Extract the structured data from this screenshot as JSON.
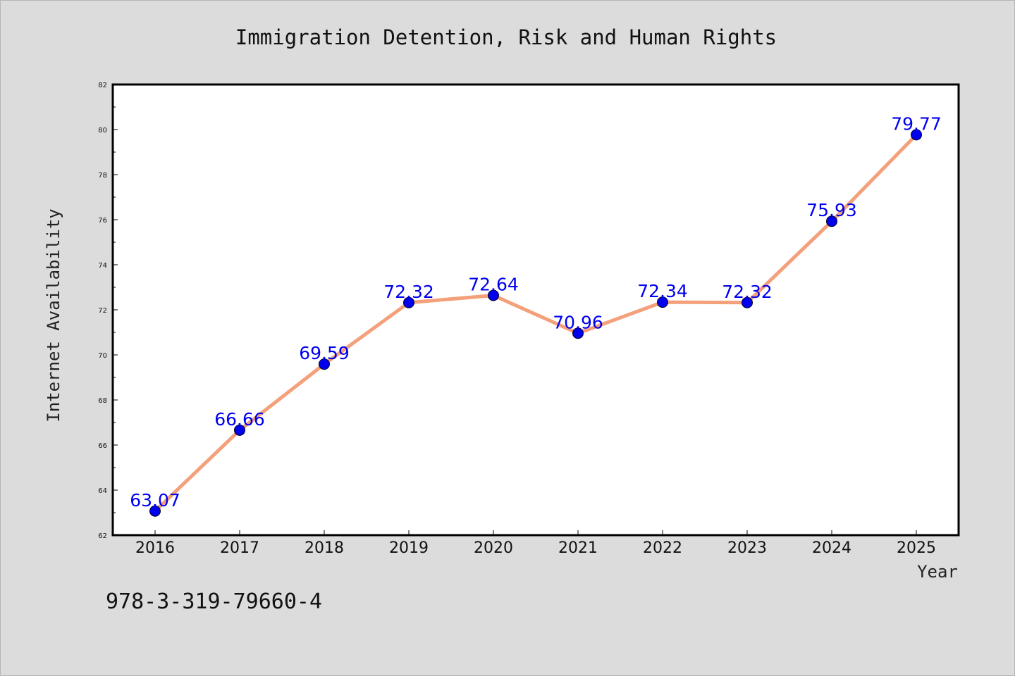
{
  "colors": {
    "background": "#dcdcdc",
    "plot_background": "#ffffff",
    "line": "#f4a07a",
    "marker": "#0000ee",
    "data_label": "#0000ee"
  },
  "footer": {
    "isbn": "978-3-319-79660-4"
  },
  "chart_data": {
    "type": "line",
    "title": "Immigration Detention, Risk and Human Rights",
    "xlabel": "Year",
    "ylabel": "Internet Availability",
    "categories": [
      "2016",
      "2017",
      "2018",
      "2019",
      "2020",
      "2021",
      "2022",
      "2023",
      "2024",
      "2025"
    ],
    "series": [
      {
        "values": [
          63.07,
          66.66,
          69.59,
          72.32,
          72.64,
          70.96,
          72.34,
          72.32,
          75.93,
          79.77
        ],
        "labels": [
          "63.07",
          "66.66",
          "69.59",
          "72.32",
          "72.64",
          "70.96",
          "72.34",
          "72.32",
          "75.93",
          "79.77"
        ]
      }
    ],
    "ylim": [
      62,
      82
    ],
    "yticks": [
      "62",
      "64",
      "66",
      "68",
      "70",
      "72",
      "74",
      "76",
      "78",
      "80",
      "82"
    ],
    "grid": false,
    "legend": "none"
  }
}
